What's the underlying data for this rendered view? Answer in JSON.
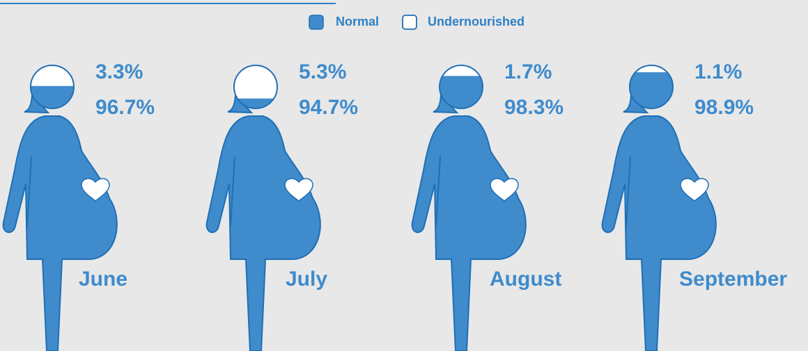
{
  "chart_data": {
    "type": "pictogram",
    "categories": [
      "June",
      "July",
      "August",
      "September"
    ],
    "series": [
      {
        "name": "Normal",
        "color": "#3f8bcc",
        "values": [
          96.7,
          94.7,
          98.3,
          98.9
        ]
      },
      {
        "name": "Undernourished",
        "color": "#ffffff",
        "values": [
          3.3,
          5.3,
          1.7,
          1.1
        ]
      }
    ],
    "value_labels": [
      [
        "96.7%",
        "94.7%",
        "98.3%",
        "98.9%"
      ],
      [
        "3.3%",
        "5.3%",
        "1.7%",
        "1.1%"
      ]
    ]
  }
}
